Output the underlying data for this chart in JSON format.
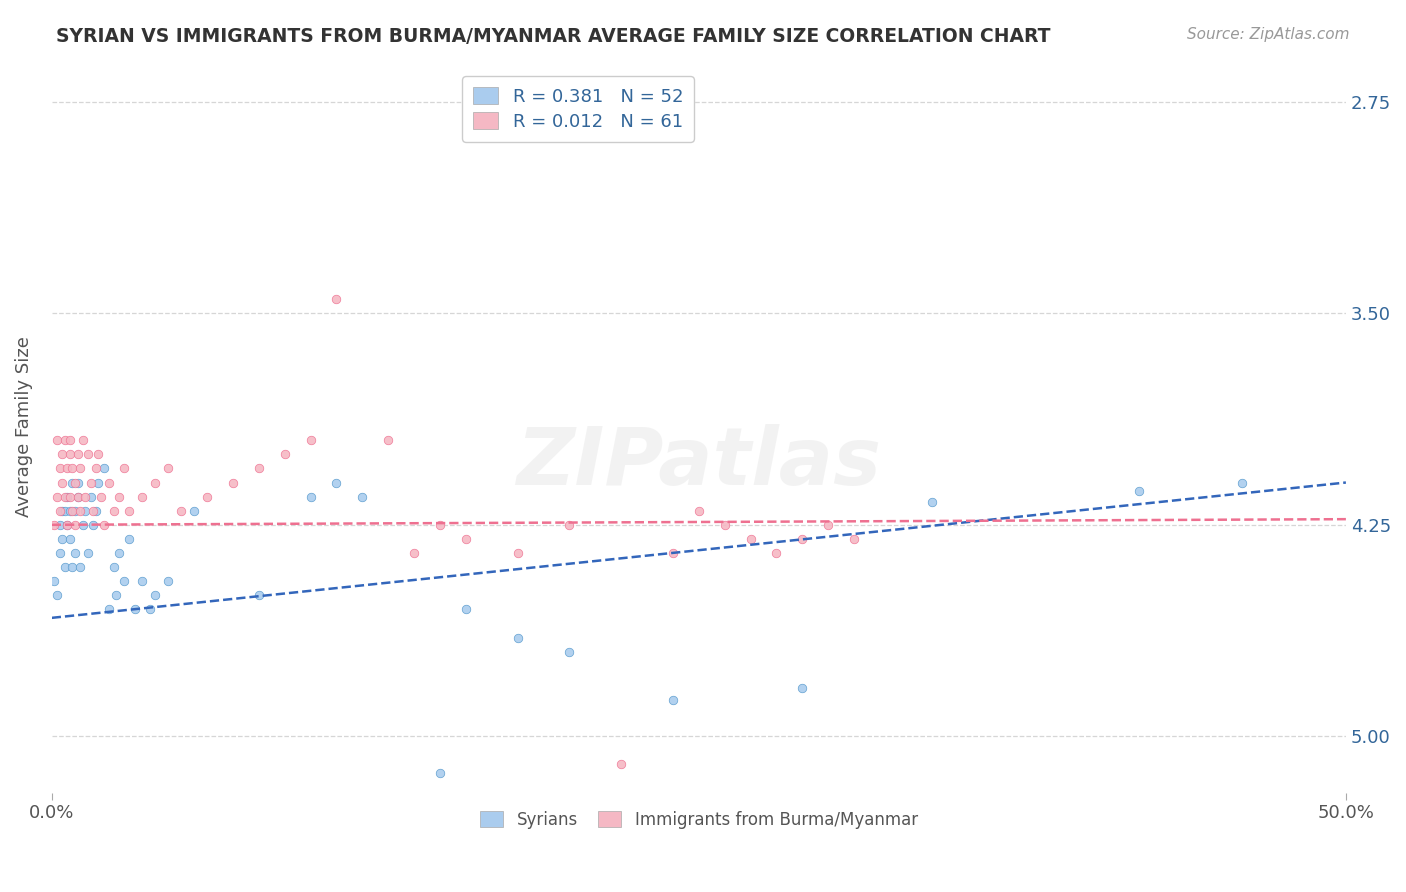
{
  "title": "SYRIAN VS IMMIGRANTS FROM BURMA/MYANMAR AVERAGE FAMILY SIZE CORRELATION CHART",
  "source": "Source: ZipAtlas.com",
  "ylabel": "Average Family Size",
  "xlim": [
    0.0,
    0.5
  ],
  "ylim": [
    2.55,
    5.15
  ],
  "yticks": [
    2.75,
    3.5,
    4.25,
    5.0
  ],
  "xticks": [
    0.0,
    0.5
  ],
  "xticklabels": [
    "0.0%",
    "50.0%"
  ],
  "yticklabels_right": [
    "5.00",
    "4.25",
    "3.50",
    "2.75"
  ],
  "series": [
    {
      "name": "Syrians",
      "color": "#aaccee",
      "edge_color": "#5599cc",
      "R": 0.381,
      "N": 52,
      "line_color": "#3366bb",
      "x": [
        0.001,
        0.002,
        0.003,
        0.003,
        0.004,
        0.004,
        0.005,
        0.005,
        0.006,
        0.006,
        0.007,
        0.007,
        0.008,
        0.008,
        0.009,
        0.009,
        0.01,
        0.01,
        0.011,
        0.012,
        0.013,
        0.014,
        0.015,
        0.016,
        0.017,
        0.018,
        0.02,
        0.022,
        0.024,
        0.025,
        0.026,
        0.028,
        0.03,
        0.032,
        0.035,
        0.038,
        0.04,
        0.045,
        0.055,
        0.08,
        0.1,
        0.11,
        0.12,
        0.15,
        0.16,
        0.18,
        0.2,
        0.24,
        0.29,
        0.34,
        0.42,
        0.46
      ],
      "y": [
        3.3,
        3.25,
        3.5,
        3.4,
        3.55,
        3.45,
        3.55,
        3.35,
        3.5,
        3.6,
        3.45,
        3.55,
        3.65,
        3.35,
        3.4,
        3.55,
        3.6,
        3.65,
        3.35,
        3.5,
        3.55,
        3.4,
        3.6,
        3.5,
        3.55,
        3.65,
        3.7,
        3.2,
        3.35,
        3.25,
        3.4,
        3.3,
        3.45,
        3.2,
        3.3,
        3.2,
        3.25,
        3.3,
        3.55,
        3.25,
        3.6,
        3.65,
        3.6,
        2.62,
        3.2,
        3.1,
        3.05,
        2.88,
        2.92,
        3.58,
        3.62,
        3.65
      ],
      "trend_x": [
        0.0,
        0.5
      ],
      "trend_y": [
        3.17,
        3.65
      ]
    },
    {
      "name": "Immigrants from Burma/Myanmar",
      "color": "#f5b8c4",
      "edge_color": "#ee7090",
      "R": 0.012,
      "N": 61,
      "line_color": "#ee7090",
      "x": [
        0.001,
        0.002,
        0.002,
        0.003,
        0.003,
        0.004,
        0.004,
        0.005,
        0.005,
        0.006,
        0.006,
        0.007,
        0.007,
        0.007,
        0.008,
        0.008,
        0.009,
        0.009,
        0.01,
        0.01,
        0.011,
        0.011,
        0.012,
        0.013,
        0.014,
        0.015,
        0.016,
        0.017,
        0.018,
        0.019,
        0.02,
        0.022,
        0.024,
        0.026,
        0.028,
        0.03,
        0.035,
        0.04,
        0.045,
        0.05,
        0.06,
        0.07,
        0.08,
        0.09,
        0.1,
        0.11,
        0.13,
        0.14,
        0.15,
        0.16,
        0.18,
        0.2,
        0.22,
        0.24,
        0.25,
        0.26,
        0.27,
        0.28,
        0.29,
        0.3,
        0.31
      ],
      "y": [
        3.5,
        3.6,
        3.8,
        3.7,
        3.55,
        3.65,
        3.75,
        3.8,
        3.6,
        3.5,
        3.7,
        3.6,
        3.75,
        3.8,
        3.55,
        3.7,
        3.5,
        3.65,
        3.6,
        3.75,
        3.55,
        3.7,
        3.8,
        3.6,
        3.75,
        3.65,
        3.55,
        3.7,
        3.75,
        3.6,
        3.5,
        3.65,
        3.55,
        3.6,
        3.7,
        3.55,
        3.6,
        3.65,
        3.7,
        3.55,
        3.6,
        3.65,
        3.7,
        3.75,
        3.8,
        4.3,
        3.8,
        3.4,
        3.5,
        3.45,
        3.4,
        3.5,
        2.65,
        3.4,
        3.55,
        3.5,
        3.45,
        3.4,
        3.45,
        3.5,
        3.45
      ],
      "trend_x": [
        0.0,
        0.5
      ],
      "trend_y": [
        3.5,
        3.52
      ]
    }
  ],
  "legend_top_labels": [
    "R = 0.381   N = 52",
    "R = 0.012   N = 61"
  ],
  "legend_top_colors": [
    "#aaccee",
    "#f5b8c4"
  ],
  "legend_bottom_labels": [
    "Syrians",
    "Immigrants from Burma/Myanmar"
  ],
  "watermark": "ZIPatlas",
  "background_color": "#ffffff",
  "grid_color": "#cccccc",
  "title_color": "#333333",
  "axis_color": "#336699",
  "dot_size": 38
}
